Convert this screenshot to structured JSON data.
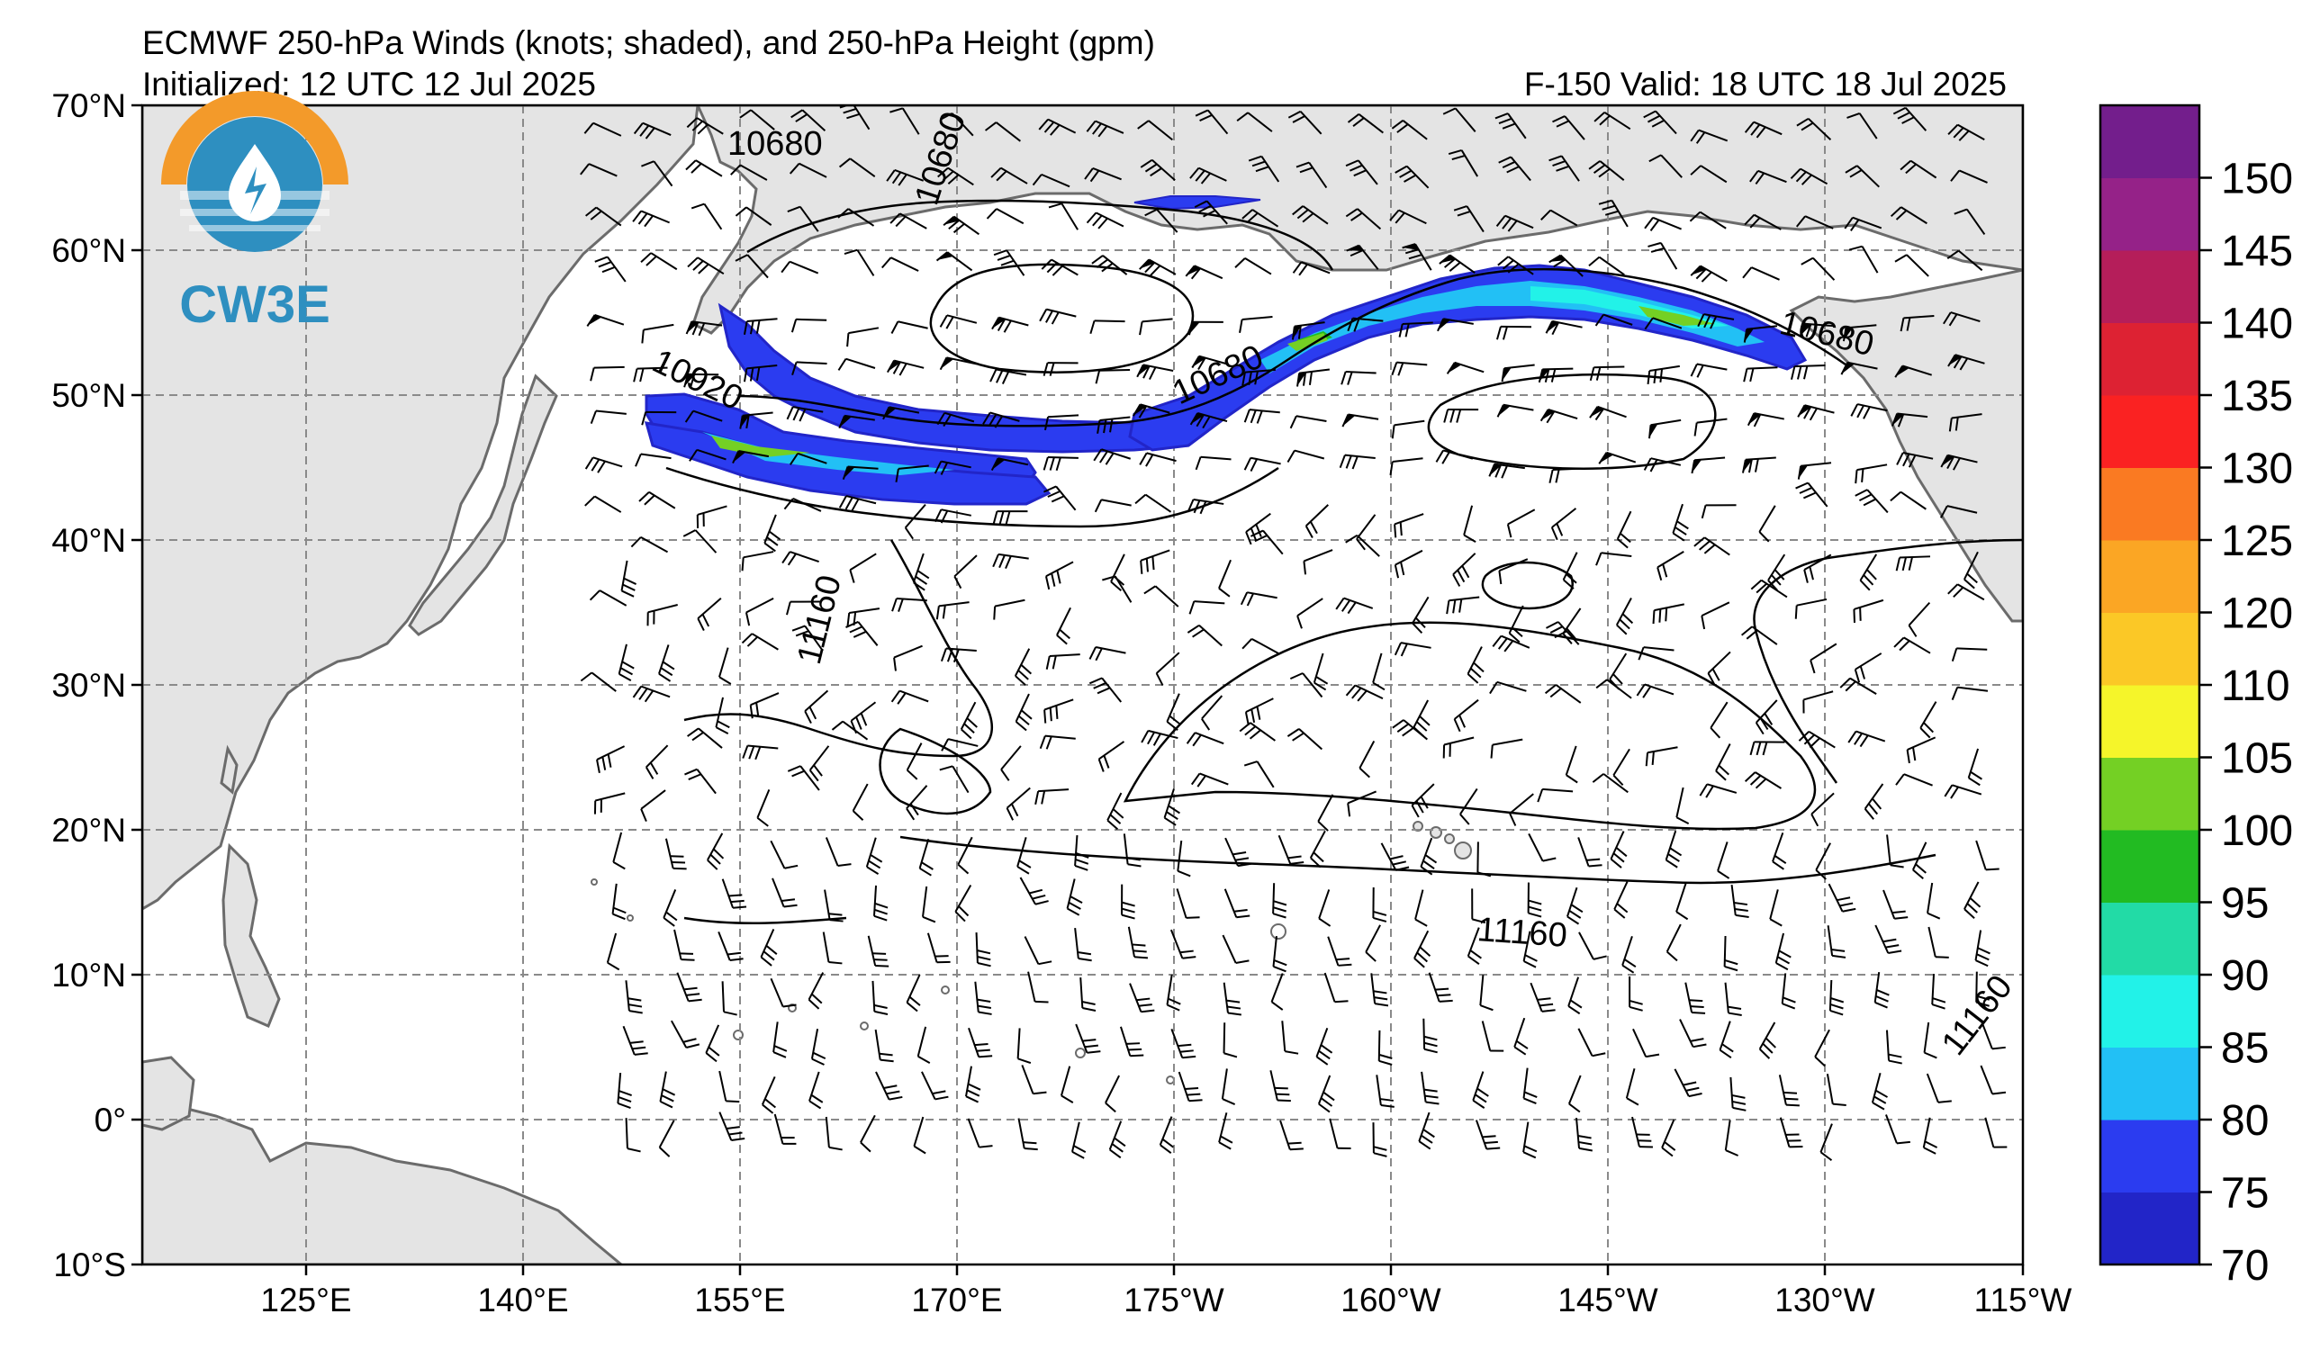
{
  "header": {
    "title": "ECMWF 250-hPa Winds (knots; shaded), and 250-hPa Height (gpm)",
    "initialized": "Initialized: 12 UTC 12 Jul 2025",
    "valid": "F-150  Valid: 18 UTC 18 Jul 2025"
  },
  "logo": {
    "text": "CW3E"
  },
  "axes": {
    "lat_labels": [
      "70°N",
      "60°N",
      "50°N",
      "40°N",
      "30°N",
      "20°N",
      "10°N",
      "0°",
      "10°S"
    ],
    "lon_labels": [
      "125°E",
      "140°E",
      "155°E",
      "170°E",
      "175°W",
      "160°W",
      "145°W",
      "130°W",
      "115°W"
    ]
  },
  "contour_labels": [
    "10680",
    "10680",
    "10920",
    "10680",
    "10680",
    "11160",
    "11160",
    "11160"
  ],
  "colorbar": {
    "labels": [
      "70",
      "75",
      "80",
      "85",
      "90",
      "95",
      "100",
      "105",
      "110",
      "120",
      "125",
      "130",
      "135",
      "140",
      "145",
      "150"
    ],
    "colors": [
      "#2225c8",
      "#2b3cf0",
      "#22c0f5",
      "#22f2e8",
      "#22dba6",
      "#22bb22",
      "#74d024",
      "#f5f52a",
      "#fbc826",
      "#fba624",
      "#fa7a22",
      "#fa2222",
      "#dd2233",
      "#b51e5a",
      "#952288",
      "#731e8c"
    ]
  },
  "colors": {
    "land": "#e4e4e4",
    "coast": "#6b6b6b",
    "grid": "#8a8a8a",
    "logo_orange": "#f39a2a",
    "logo_blue": "#2e8fc0"
  }
}
